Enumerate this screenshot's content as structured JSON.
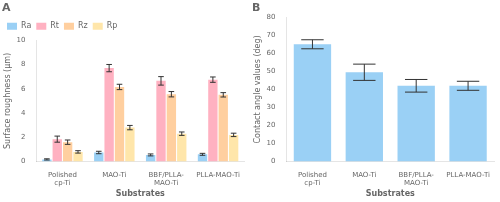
{
  "chart_data": [
    {
      "type": "bar",
      "title": "A",
      "xlabel": "Substrates",
      "ylabel": "Surface roughness (μm)",
      "categories": [
        "Polished\ncp-Ti",
        "MAO-Ti",
        "BBF/PLLA-\nMAO-Ti",
        "PLLA-MAO-Ti"
      ],
      "series": [
        {
          "name": "Ra",
          "values": [
            0.18,
            0.75,
            0.55,
            0.6
          ],
          "errors": [
            0.05,
            0.1,
            0.08,
            0.08
          ]
        },
        {
          "name": "Rt",
          "values": [
            1.85,
            7.7,
            6.65,
            6.75
          ],
          "errors": [
            0.25,
            0.3,
            0.35,
            0.22
          ]
        },
        {
          "name": "Rz",
          "values": [
            1.6,
            6.15,
            5.55,
            5.5
          ],
          "errors": [
            0.18,
            0.22,
            0.22,
            0.18
          ]
        },
        {
          "name": "Rp",
          "values": [
            0.8,
            2.8,
            2.3,
            2.2
          ],
          "errors": [
            0.1,
            0.18,
            0.14,
            0.14
          ]
        }
      ],
      "ylim": [
        0,
        10
      ],
      "yticks": [
        0,
        2,
        4,
        6,
        8,
        10
      ],
      "grid": false,
      "legend": "upper left"
    },
    {
      "type": "bar",
      "title": "B",
      "xlabel": "Substrates",
      "ylabel": "Contact angle values (deg)",
      "categories": [
        "Polished\ncp-Ti",
        "MAO-Ti",
        "BBF/PLLA-\nMAO-Ti",
        "PLLA-MAO-Ti"
      ],
      "values": [
        65.0,
        49.5,
        42.0,
        42.0
      ],
      "errors": [
        2.5,
        4.5,
        3.5,
        2.5
      ],
      "ylim": [
        0,
        80
      ],
      "yticks": [
        0,
        10,
        20,
        30,
        40,
        50,
        60,
        70,
        80
      ],
      "grid": false
    }
  ]
}
